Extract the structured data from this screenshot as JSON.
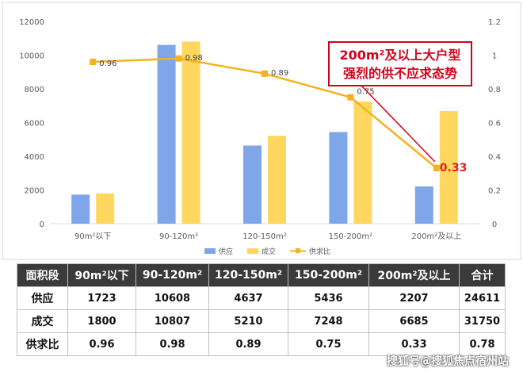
{
  "chart_data": {
    "type": "bar",
    "categories": [
      "90m²以下",
      "90-120m²",
      "120-150m²",
      "150-200m²",
      "200m²及以上"
    ],
    "series": [
      {
        "name": "供应",
        "type": "bar",
        "axis": "left",
        "color": "#7EA6E8",
        "values": [
          1723,
          10608,
          4637,
          5436,
          2207
        ]
      },
      {
        "name": "成交",
        "type": "bar",
        "axis": "left",
        "color": "#FFD75E",
        "values": [
          1800,
          10807,
          5210,
          7248,
          6685
        ]
      },
      {
        "name": "供求比",
        "type": "line",
        "axis": "right",
        "color": "#F2B321",
        "values": [
          0.96,
          0.98,
          0.89,
          0.75,
          0.33
        ]
      }
    ],
    "data_labels": [
      "0.96",
      "0.98",
      "0.89",
      "0.75",
      "0.33"
    ],
    "y_left": {
      "ylim": [
        0,
        12000
      ],
      "ticks": [
        "0",
        "2000",
        "4000",
        "6000",
        "8000",
        "10000",
        "12000"
      ]
    },
    "y_right": {
      "ylim": [
        0,
        1.2
      ],
      "ticks": [
        "0",
        "0.2",
        "0.4",
        "0.6",
        "0.8",
        "1",
        "1.2"
      ]
    },
    "grid": false,
    "legend_position": "bottom",
    "annotation": {
      "lines": [
        "200m²及以上大户型",
        "强烈的供不应求态势"
      ],
      "color": "#d0021b"
    }
  },
  "table": {
    "header": [
      "面积段",
      "90m²以下",
      "90-120m²",
      "120-150m²",
      "150-200m²",
      "200m²及以上",
      "合计"
    ],
    "rows": [
      [
        "供应",
        "1723",
        "10608",
        "4637",
        "5436",
        "2207",
        "24611"
      ],
      [
        "成交",
        "1800",
        "10807",
        "5210",
        "7248",
        "6685",
        "31750"
      ],
      [
        "供求比",
        "0.96",
        "0.98",
        "0.89",
        "0.75",
        "0.33",
        "0.78"
      ]
    ]
  },
  "watermark": "搜狐号@搜狐焦点宿州站"
}
